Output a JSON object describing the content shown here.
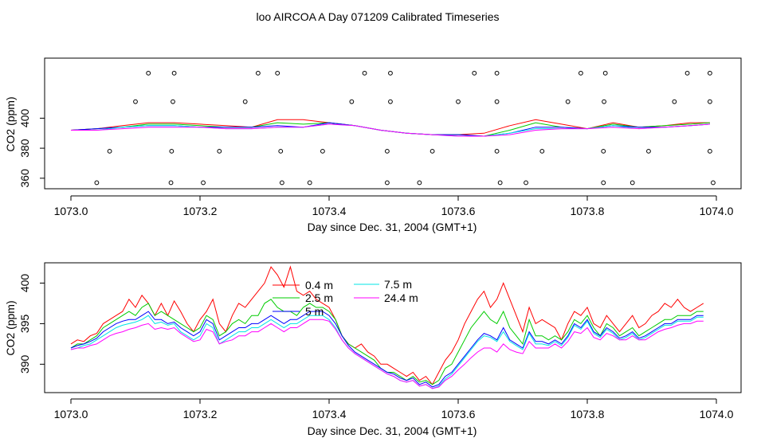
{
  "figure_title": "loo AIRCOA A  Day 071209  Calibrated Timeseries",
  "colors": {
    "0.4 m": "#ff0000",
    "2.5 m": "#00cc00",
    "5 m": "#0000ff",
    "7.5 m": "#00e5e5",
    "24.4 m": "#ff00ff"
  },
  "chart_data": [
    {
      "type": "line",
      "title": "",
      "xlabel": "Day since Dec. 31, 2004 (GMT+1)",
      "ylabel": "CO2 (ppm)",
      "xlim": [
        1073.0,
        1074.0
      ],
      "ylim": [
        353,
        440
      ],
      "x_ticks": [
        "1073.0",
        "1073.2",
        "1073.4",
        "1073.6",
        "1073.8",
        "1074.0"
      ],
      "y_ticks": [
        "360",
        "380",
        "400"
      ],
      "x_tick_values": [
        1073.0,
        1073.2,
        1073.4,
        1073.6,
        1073.8,
        1074.0
      ],
      "y_tick_values": [
        360,
        380,
        400
      ],
      "grid": false,
      "legend": "none",
      "x": [
        1073.0,
        1073.04,
        1073.08,
        1073.12,
        1073.16,
        1073.2,
        1073.24,
        1073.28,
        1073.32,
        1073.36,
        1073.4,
        1073.44,
        1073.48,
        1073.52,
        1073.56,
        1073.6,
        1073.64,
        1073.68,
        1073.72,
        1073.76,
        1073.8,
        1073.84,
        1073.88,
        1073.92,
        1073.96,
        1073.99
      ],
      "series": [
        {
          "name": "0.4 m",
          "values": [
            392,
            393,
            395,
            397,
            397,
            396,
            395,
            394,
            399,
            399,
            397,
            395,
            392,
            390,
            389,
            389,
            390,
            395,
            399,
            396,
            393,
            397,
            394,
            395,
            397,
            397
          ]
        },
        {
          "name": "2.5 m",
          "values": [
            392,
            393,
            394,
            396,
            396,
            395,
            394,
            394,
            397,
            396,
            397,
            395,
            392,
            390,
            389,
            389,
            388,
            392,
            397,
            394,
            393,
            396,
            394,
            395,
            396,
            397
          ]
        },
        {
          "name": "5 m",
          "values": [
            392,
            393,
            394,
            395,
            395,
            394,
            394,
            394,
            395,
            394,
            397,
            395,
            392,
            390,
            389,
            389,
            388,
            390,
            394,
            394,
            393,
            395,
            394,
            394,
            395,
            396
          ]
        },
        {
          "name": "7.5 m",
          "values": [
            392,
            392,
            394,
            395,
            395,
            394,
            393,
            393,
            394,
            394,
            396,
            395,
            392,
            390,
            389,
            388,
            388,
            390,
            393,
            393,
            393,
            395,
            393,
            394,
            395,
            396
          ]
        },
        {
          "name": "24.4 m",
          "values": [
            392,
            392,
            393,
            394,
            394,
            394,
            393,
            393,
            394,
            394,
            396,
            395,
            392,
            390,
            389,
            388,
            388,
            389,
            392,
            393,
            393,
            394,
            393,
            394,
            395,
            396
          ]
        }
      ],
      "points": [
        [
          1073.04,
          357
        ],
        [
          1073.06,
          378
        ],
        [
          1073.1,
          411
        ],
        [
          1073.12,
          430
        ],
        [
          1073.155,
          357
        ],
        [
          1073.156,
          378
        ],
        [
          1073.158,
          411
        ],
        [
          1073.16,
          430
        ],
        [
          1073.205,
          357
        ],
        [
          1073.23,
          378
        ],
        [
          1073.27,
          411
        ],
        [
          1073.29,
          430
        ],
        [
          1073.32,
          430
        ],
        [
          1073.325,
          378
        ],
        [
          1073.327,
          357
        ],
        [
          1073.37,
          357
        ],
        [
          1073.39,
          378
        ],
        [
          1073.435,
          411
        ],
        [
          1073.455,
          430
        ],
        [
          1073.49,
          357
        ],
        [
          1073.49,
          378
        ],
        [
          1073.495,
          411
        ],
        [
          1073.495,
          430
        ],
        [
          1073.54,
          357
        ],
        [
          1073.56,
          378
        ],
        [
          1073.6,
          411
        ],
        [
          1073.625,
          430
        ],
        [
          1073.66,
          378
        ],
        [
          1073.66,
          411
        ],
        [
          1073.66,
          430
        ],
        [
          1073.665,
          357
        ],
        [
          1073.705,
          357
        ],
        [
          1073.73,
          378
        ],
        [
          1073.77,
          411
        ],
        [
          1073.79,
          430
        ],
        [
          1073.825,
          357
        ],
        [
          1073.825,
          378
        ],
        [
          1073.826,
          411
        ],
        [
          1073.828,
          430
        ],
        [
          1073.87,
          357
        ],
        [
          1073.895,
          378
        ],
        [
          1073.935,
          411
        ],
        [
          1073.955,
          430
        ],
        [
          1073.99,
          378
        ],
        [
          1073.99,
          411
        ],
        [
          1073.99,
          430
        ],
        [
          1073.995,
          357
        ]
      ]
    },
    {
      "type": "line",
      "title": "",
      "xlabel": "Day since Dec. 31, 2004 (GMT+1)",
      "ylabel": "CO2 (ppm)",
      "xlim": [
        1073.0,
        1074.0
      ],
      "ylim": [
        386.5,
        402.5
      ],
      "x_ticks": [
        "1073.0",
        "1073.2",
        "1073.4",
        "1073.6",
        "1073.8",
        "1074.0"
      ],
      "y_ticks": [
        "390",
        "395",
        "400"
      ],
      "x_tick_values": [
        1073.0,
        1073.2,
        1073.4,
        1073.6,
        1073.8,
        1074.0
      ],
      "y_tick_values": [
        390,
        395,
        400
      ],
      "grid": false,
      "legend": "top-center",
      "x": [
        1073.0,
        1073.01,
        1073.02,
        1073.03,
        1073.04,
        1073.05,
        1073.06,
        1073.07,
        1073.08,
        1073.09,
        1073.1,
        1073.11,
        1073.12,
        1073.13,
        1073.14,
        1073.15,
        1073.16,
        1073.17,
        1073.18,
        1073.19,
        1073.2,
        1073.21,
        1073.22,
        1073.23,
        1073.24,
        1073.25,
        1073.26,
        1073.27,
        1073.28,
        1073.29,
        1073.3,
        1073.31,
        1073.32,
        1073.33,
        1073.34,
        1073.35,
        1073.36,
        1073.37,
        1073.38,
        1073.39,
        1073.4,
        1073.41,
        1073.42,
        1073.43,
        1073.44,
        1073.45,
        1073.46,
        1073.47,
        1073.48,
        1073.49,
        1073.5,
        1073.51,
        1073.52,
        1073.53,
        1073.54,
        1073.55,
        1073.56,
        1073.57,
        1073.58,
        1073.59,
        1073.6,
        1073.61,
        1073.62,
        1073.63,
        1073.64,
        1073.65,
        1073.66,
        1073.67,
        1073.68,
        1073.69,
        1073.7,
        1073.71,
        1073.72,
        1073.73,
        1073.74,
        1073.75,
        1073.76,
        1073.77,
        1073.78,
        1073.79,
        1073.8,
        1073.81,
        1073.82,
        1073.83,
        1073.84,
        1073.85,
        1073.86,
        1073.87,
        1073.88,
        1073.89,
        1073.9,
        1073.91,
        1073.92,
        1073.93,
        1073.94,
        1073.95,
        1073.96,
        1073.97,
        1073.98
      ],
      "series": [
        {
          "name": "0.4 m",
          "values": [
            392.5,
            393.0,
            392.8,
            393.5,
            393.8,
            395.0,
            395.5,
            396.0,
            396.5,
            398.0,
            397.0,
            398.5,
            397.5,
            396.0,
            397.5,
            396.0,
            397.8,
            396.5,
            395.0,
            394.0,
            395.5,
            396.5,
            398.0,
            395.0,
            394.0,
            396.0,
            397.5,
            397.0,
            398.0,
            399.0,
            400.0,
            402.0,
            401.0,
            399.5,
            402.0,
            399.0,
            398.5,
            399.0,
            398.0,
            397.5,
            397.0,
            395.5,
            393.5,
            392.5,
            392.0,
            392.5,
            391.5,
            391.0,
            390.0,
            390.0,
            389.5,
            389.0,
            388.5,
            389.0,
            388.0,
            388.5,
            387.5,
            389.0,
            390.5,
            391.5,
            393.0,
            395.0,
            396.5,
            398.0,
            399.0,
            397.0,
            398.0,
            400.0,
            398.0,
            396.0,
            394.0,
            397.0,
            395.0,
            395.5,
            395.0,
            394.5,
            393.0,
            395.0,
            396.5,
            396.0,
            397.0,
            395.0,
            394.5,
            396.0,
            395.0,
            394.0,
            395.0,
            396.0,
            394.5,
            395.0,
            396.0,
            396.5,
            397.5,
            397.0,
            398.0,
            397.0,
            396.5,
            397.0,
            397.5
          ]
        },
        {
          "name": "2.5 m",
          "values": [
            392.0,
            392.5,
            392.5,
            393.0,
            393.5,
            394.5,
            395.0,
            395.5,
            396.0,
            396.5,
            396.0,
            397.0,
            397.5,
            396.0,
            396.5,
            396.0,
            395.5,
            395.0,
            394.5,
            394.0,
            394.5,
            396.0,
            395.5,
            393.5,
            394.0,
            395.0,
            395.5,
            395.0,
            396.0,
            396.0,
            397.5,
            398.0,
            397.0,
            396.5,
            396.5,
            396.0,
            397.0,
            397.5,
            397.0,
            397.0,
            396.5,
            395.5,
            393.5,
            392.5,
            392.0,
            391.5,
            391.0,
            390.5,
            389.5,
            389.0,
            389.0,
            388.5,
            388.0,
            388.5,
            387.8,
            388.0,
            387.5,
            388.0,
            389.5,
            390.0,
            391.5,
            393.0,
            394.5,
            395.5,
            396.5,
            395.5,
            395.0,
            396.5,
            394.5,
            393.5,
            392.5,
            395.5,
            393.5,
            393.5,
            393.0,
            393.5,
            393.0,
            394.0,
            395.5,
            395.0,
            396.0,
            394.5,
            393.5,
            395.0,
            394.5,
            393.5,
            394.0,
            394.5,
            393.5,
            394.0,
            394.5,
            395.0,
            395.5,
            395.5,
            396.0,
            396.0,
            396.0,
            396.5,
            396.5
          ]
        },
        {
          "name": "5 m",
          "values": [
            392.0,
            392.3,
            392.5,
            392.8,
            393.2,
            394.0,
            394.5,
            395.0,
            395.3,
            395.5,
            395.5,
            396.0,
            396.5,
            395.5,
            395.5,
            395.0,
            395.2,
            394.5,
            394.0,
            393.5,
            394.0,
            395.5,
            395.0,
            393.0,
            393.5,
            394.0,
            394.5,
            394.5,
            395.0,
            395.0,
            395.5,
            396.0,
            395.5,
            395.0,
            395.5,
            395.5,
            396.0,
            396.5,
            396.5,
            396.5,
            396.0,
            395.0,
            393.5,
            392.3,
            391.5,
            391.0,
            390.5,
            390.0,
            389.5,
            389.0,
            388.8,
            388.3,
            388.0,
            388.3,
            387.5,
            387.8,
            387.2,
            387.5,
            388.5,
            389.0,
            390.0,
            391.0,
            392.0,
            393.0,
            393.8,
            393.5,
            393.0,
            394.5,
            393.0,
            392.5,
            392.0,
            394.0,
            392.8,
            392.8,
            392.5,
            393.0,
            392.5,
            393.5,
            395.0,
            394.5,
            395.5,
            394.0,
            393.5,
            394.5,
            394.0,
            393.2,
            393.5,
            394.0,
            393.2,
            393.5,
            394.0,
            394.5,
            395.0,
            395.0,
            395.5,
            395.5,
            395.5,
            396.0,
            396.0
          ]
        },
        {
          "name": "7.5 m",
          "values": [
            391.8,
            392.0,
            392.3,
            392.5,
            393.0,
            393.5,
            394.0,
            394.5,
            394.8,
            395.0,
            395.2,
            395.5,
            396.0,
            395.0,
            395.2,
            394.8,
            395.0,
            394.0,
            393.5,
            393.0,
            393.5,
            395.0,
            394.5,
            392.5,
            393.0,
            393.5,
            394.0,
            394.0,
            394.5,
            394.5,
            395.0,
            395.5,
            395.0,
            394.5,
            395.0,
            395.0,
            395.5,
            396.0,
            396.0,
            396.0,
            395.5,
            394.5,
            393.0,
            392.0,
            391.3,
            390.8,
            390.3,
            389.8,
            389.3,
            388.8,
            388.5,
            388.0,
            387.8,
            388.0,
            387.3,
            387.5,
            387.0,
            387.3,
            388.2,
            388.8,
            389.8,
            390.8,
            391.8,
            392.8,
            393.5,
            393.3,
            392.8,
            394.0,
            392.8,
            392.3,
            391.8,
            393.8,
            392.5,
            392.5,
            392.3,
            392.8,
            392.3,
            393.3,
            394.8,
            394.3,
            395.3,
            393.8,
            393.3,
            394.3,
            393.8,
            393.0,
            393.3,
            393.8,
            393.0,
            393.3,
            393.8,
            394.3,
            394.8,
            394.8,
            395.3,
            395.3,
            395.3,
            395.8,
            395.8
          ]
        },
        {
          "name": "24.4 m",
          "values": [
            391.8,
            392.0,
            392.0,
            392.3,
            392.5,
            393.0,
            393.5,
            393.8,
            394.0,
            394.3,
            394.5,
            394.8,
            395.0,
            394.3,
            394.5,
            394.3,
            394.5,
            393.8,
            393.3,
            392.8,
            393.0,
            394.3,
            394.0,
            392.5,
            392.8,
            393.0,
            393.5,
            393.5,
            394.0,
            394.0,
            394.5,
            395.0,
            394.5,
            394.0,
            394.5,
            394.5,
            395.0,
            395.5,
            395.5,
            395.5,
            395.3,
            394.3,
            393.0,
            392.0,
            391.3,
            390.8,
            390.3,
            389.8,
            389.3,
            388.8,
            388.5,
            388.0,
            387.8,
            388.0,
            387.3,
            387.5,
            387.0,
            387.2,
            388.0,
            388.5,
            389.3,
            390.0,
            390.8,
            391.5,
            392.0,
            392.0,
            391.5,
            392.5,
            391.8,
            391.5,
            391.3,
            392.8,
            392.0,
            392.0,
            392.0,
            392.5,
            392.0,
            392.8,
            394.0,
            393.8,
            394.5,
            393.3,
            393.0,
            393.8,
            393.5,
            393.0,
            393.0,
            393.5,
            393.0,
            393.0,
            393.5,
            394.0,
            394.3,
            394.5,
            394.8,
            395.0,
            395.0,
            395.3,
            395.3
          ]
        }
      ]
    }
  ]
}
